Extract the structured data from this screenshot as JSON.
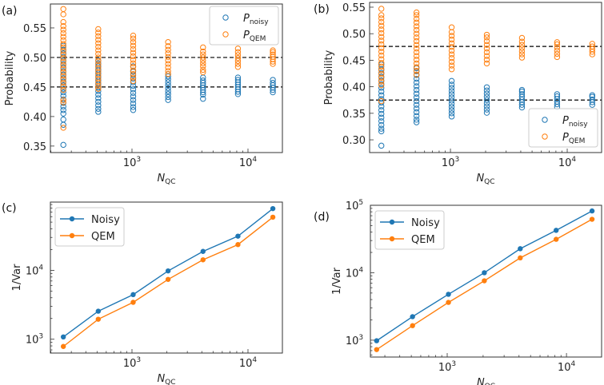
{
  "colors": {
    "noisy": "#1f77b4",
    "qem": "#ff7f0e",
    "reference": "#000000"
  },
  "chart_data": [
    {
      "panel": "(a)",
      "type": "scatter",
      "xscale": "log",
      "xlim": [
        198,
        19800
      ],
      "ylim": [
        0.339,
        0.5905
      ],
      "xlabel": {
        "main": "N",
        "sub": "QC"
      },
      "ylabel": "Probability",
      "xticks": [
        {
          "value": 1000,
          "base": "10",
          "exp": "3"
        },
        {
          "value": 10000,
          "base": "10",
          "exp": "4"
        }
      ],
      "yticks": [
        {
          "value": 0.35,
          "label": "0.35"
        },
        {
          "value": 0.4,
          "label": "0.40"
        },
        {
          "value": 0.45,
          "label": "0.45"
        },
        {
          "value": 0.5,
          "label": "0.50"
        },
        {
          "value": 0.55,
          "label": "0.55"
        }
      ],
      "hlines": [
        0.5,
        0.45
      ],
      "legend": {
        "placement": "top-right",
        "entries": [
          {
            "main": "P",
            "sub": "noisy",
            "series": "noisy"
          },
          {
            "main": "P",
            "sub": "QEM",
            "series": "qem"
          }
        ]
      },
      "x": [
        256,
        512,
        1024,
        2048,
        4096,
        8192,
        16384
      ],
      "series": [
        {
          "name": "P_noisy",
          "key": "noisy",
          "points": [
            [
              0.352,
              0.386,
              0.395,
              0.405,
              0.411,
              0.417,
              0.423,
              0.429,
              0.435,
              0.441,
              0.447,
              0.453,
              0.459,
              0.465,
              0.471,
              0.477,
              0.483,
              0.489,
              0.495,
              0.501,
              0.507,
              0.513,
              0.52
            ],
            [
              0.408,
              0.413,
              0.419,
              0.425,
              0.431,
              0.437,
              0.443,
              0.449,
              0.455,
              0.461,
              0.467,
              0.473,
              0.479,
              0.485,
              0.49,
              0.495
            ],
            [
              0.411,
              0.416,
              0.422,
              0.428,
              0.434,
              0.44,
              0.446,
              0.452,
              0.458,
              0.464,
              0.47,
              0.476,
              0.485
            ],
            [
              0.428,
              0.433,
              0.438,
              0.443,
              0.448,
              0.453,
              0.458,
              0.463,
              0.468,
              0.472
            ],
            [
              0.43,
              0.437,
              0.441,
              0.445,
              0.449,
              0.453,
              0.457,
              0.461,
              0.466
            ],
            [
              0.438,
              0.442,
              0.446,
              0.45,
              0.454,
              0.458,
              0.462,
              0.466
            ],
            [
              0.441,
              0.445,
              0.449,
              0.453,
              0.457,
              0.462
            ]
          ]
        },
        {
          "name": "P_QEM",
          "key": "qem",
          "points": [
            [
              0.381,
              0.424,
              0.428,
              0.445,
              0.451,
              0.457,
              0.463,
              0.469,
              0.475,
              0.481,
              0.487,
              0.493,
              0.499,
              0.505,
              0.511,
              0.517,
              0.523,
              0.529,
              0.535,
              0.541,
              0.547,
              0.553,
              0.56,
              0.573,
              0.582
            ],
            [
              0.447,
              0.452,
              0.458,
              0.464,
              0.47,
              0.476,
              0.482,
              0.488,
              0.494,
              0.5,
              0.506,
              0.512,
              0.518,
              0.524,
              0.53,
              0.536,
              0.542,
              0.548
            ],
            [
              0.46,
              0.466,
              0.472,
              0.478,
              0.484,
              0.49,
              0.496,
              0.502,
              0.508,
              0.514,
              0.52,
              0.526,
              0.532,
              0.537
            ],
            [
              0.472,
              0.477,
              0.483,
              0.489,
              0.495,
              0.501,
              0.507,
              0.513,
              0.519,
              0.526
            ],
            [
              0.475,
              0.479,
              0.485,
              0.49,
              0.495,
              0.5,
              0.505,
              0.51,
              0.517
            ],
            [
              0.484,
              0.489,
              0.494,
              0.499,
              0.504,
              0.509,
              0.515
            ],
            [
              0.489,
              0.493,
              0.497,
              0.501,
              0.505,
              0.509,
              0.512
            ]
          ]
        }
      ]
    },
    {
      "panel": "(b)",
      "type": "scatter",
      "xscale": "log",
      "xlim": [
        203,
        19700
      ],
      "ylim": [
        0.276,
        0.559
      ],
      "xlabel": {
        "main": "N",
        "sub": "QC"
      },
      "ylabel": "Probability",
      "xticks": [
        {
          "value": 1000,
          "base": "10",
          "exp": "3"
        },
        {
          "value": 10000,
          "base": "10",
          "exp": "4"
        }
      ],
      "yticks": [
        {
          "value": 0.3,
          "label": "0.30"
        },
        {
          "value": 0.35,
          "label": "0.35"
        },
        {
          "value": 0.4,
          "label": "0.40"
        },
        {
          "value": 0.45,
          "label": "0.45"
        },
        {
          "value": 0.5,
          "label": "0.50"
        },
        {
          "value": 0.55,
          "label": "0.55"
        }
      ],
      "hlines": [
        0.476,
        0.375
      ],
      "legend": {
        "placement": "bottom-right",
        "entries": [
          {
            "main": "P",
            "sub": "noisy",
            "series": "noisy"
          },
          {
            "main": "P",
            "sub": "QEM",
            "series": "qem"
          }
        ]
      },
      "x": [
        256,
        512,
        1024,
        2048,
        4096,
        8192,
        16384
      ],
      "series": [
        {
          "name": "P_noisy",
          "key": "noisy",
          "points": [
            [
              0.289,
              0.316,
              0.321,
              0.328,
              0.335,
              0.342,
              0.349,
              0.356,
              0.363,
              0.37,
              0.377,
              0.384,
              0.391,
              0.398,
              0.405,
              0.412,
              0.419,
              0.426,
              0.433,
              0.442
            ],
            [
              0.333,
              0.338,
              0.345,
              0.352,
              0.359,
              0.366,
              0.373,
              0.38,
              0.387,
              0.394,
              0.401,
              0.408,
              0.415,
              0.422,
              0.429,
              0.435
            ],
            [
              0.344,
              0.35,
              0.356,
              0.362,
              0.368,
              0.374,
              0.38,
              0.386,
              0.392,
              0.398,
              0.404,
              0.411
            ],
            [
              0.351,
              0.357,
              0.363,
              0.369,
              0.375,
              0.381,
              0.387,
              0.393,
              0.399
            ],
            [
              0.361,
              0.366,
              0.371,
              0.376,
              0.381,
              0.386,
              0.391,
              0.394
            ],
            [
              0.362,
              0.367,
              0.372,
              0.377,
              0.382,
              0.386
            ],
            [
              0.366,
              0.371,
              0.376,
              0.381,
              0.384
            ]
          ]
        },
        {
          "name": "P_QEM",
          "key": "qem",
          "points": [
            [
              0.373,
              0.403,
              0.41,
              0.417,
              0.424,
              0.431,
              0.438,
              0.445,
              0.452,
              0.459,
              0.466,
              0.473,
              0.48,
              0.487,
              0.494,
              0.501,
              0.508,
              0.515,
              0.522,
              0.529,
              0.535,
              0.547
            ],
            [
              0.423,
              0.43,
              0.437,
              0.444,
              0.451,
              0.458,
              0.465,
              0.472,
              0.479,
              0.486,
              0.493,
              0.5,
              0.507,
              0.514,
              0.521,
              0.528,
              0.535,
              0.54
            ],
            [
              0.433,
              0.44,
              0.447,
              0.454,
              0.461,
              0.468,
              0.475,
              0.482,
              0.489,
              0.496,
              0.503,
              0.512
            ],
            [
              0.444,
              0.451,
              0.458,
              0.465,
              0.472,
              0.479,
              0.486,
              0.493,
              0.498
            ],
            [
              0.455,
              0.461,
              0.467,
              0.473,
              0.479,
              0.485,
              0.492
            ],
            [
              0.456,
              0.462,
              0.468,
              0.474,
              0.48,
              0.484
            ],
            [
              0.461,
              0.466,
              0.471,
              0.476,
              0.481
            ]
          ]
        }
      ]
    },
    {
      "panel": "(c)",
      "type": "line",
      "xscale": "log",
      "xlim": [
        198,
        19800
      ],
      "yscale": "log",
      "ylim": [
        630,
        97700
      ],
      "xlabel": {
        "main": "N",
        "sub": "QC"
      },
      "ylabel": "1/Var",
      "xticks": [
        {
          "value": 1000,
          "base": "10",
          "exp": "3"
        },
        {
          "value": 10000,
          "base": "10",
          "exp": "4"
        }
      ],
      "yticks": [
        {
          "value": 1000,
          "base": "10",
          "exp": "3"
        },
        {
          "value": 10000,
          "base": "10",
          "exp": "4"
        }
      ],
      "legend": {
        "placement": "top-left",
        "entries": [
          {
            "label": "Noisy",
            "series": "noisy"
          },
          {
            "label": "QEM",
            "series": "qem"
          }
        ]
      },
      "x": [
        256,
        512,
        1024,
        2048,
        4096,
        8192,
        16384
      ],
      "series": [
        {
          "name": "Noisy",
          "key": "noisy",
          "values": [
            1080,
            2550,
            4440,
            9800,
            18800,
            31300,
            78600
          ]
        },
        {
          "name": "QEM",
          "key": "qem",
          "values": [
            785,
            1950,
            3430,
            7380,
            14200,
            23600,
            59000
          ]
        }
      ]
    },
    {
      "panel": "(d)",
      "type": "line",
      "xscale": "log",
      "xlim": [
        227,
        19700
      ],
      "yscale": "log",
      "ylim": [
        562,
        100000
      ],
      "xlabel": {
        "main": "N",
        "sub": "QC"
      },
      "ylabel": "1/Var",
      "xticks": [
        {
          "value": 1000,
          "base": "10",
          "exp": "3"
        },
        {
          "value": 10000,
          "base": "10",
          "exp": "4"
        }
      ],
      "yticks": [
        {
          "value": 1000,
          "base": "10",
          "exp": "3"
        },
        {
          "value": 10000,
          "base": "10",
          "exp": "4"
        },
        {
          "value": 100000,
          "base": "10",
          "exp": "5"
        }
      ],
      "legend": {
        "placement": "top-left",
        "entries": [
          {
            "label": "Noisy",
            "series": "noisy"
          },
          {
            "label": "QEM",
            "series": "qem"
          }
        ]
      },
      "x": [
        256,
        512,
        1024,
        2048,
        4096,
        8192,
        16384
      ],
      "series": [
        {
          "name": "Noisy",
          "key": "noisy",
          "values": [
            980,
            2230,
            4790,
            10000,
            22700,
            42500,
            82400
          ]
        },
        {
          "name": "QEM",
          "key": "qem",
          "values": [
            725,
            1640,
            3630,
            7590,
            16600,
            31300,
            62000
          ]
        }
      ]
    }
  ]
}
